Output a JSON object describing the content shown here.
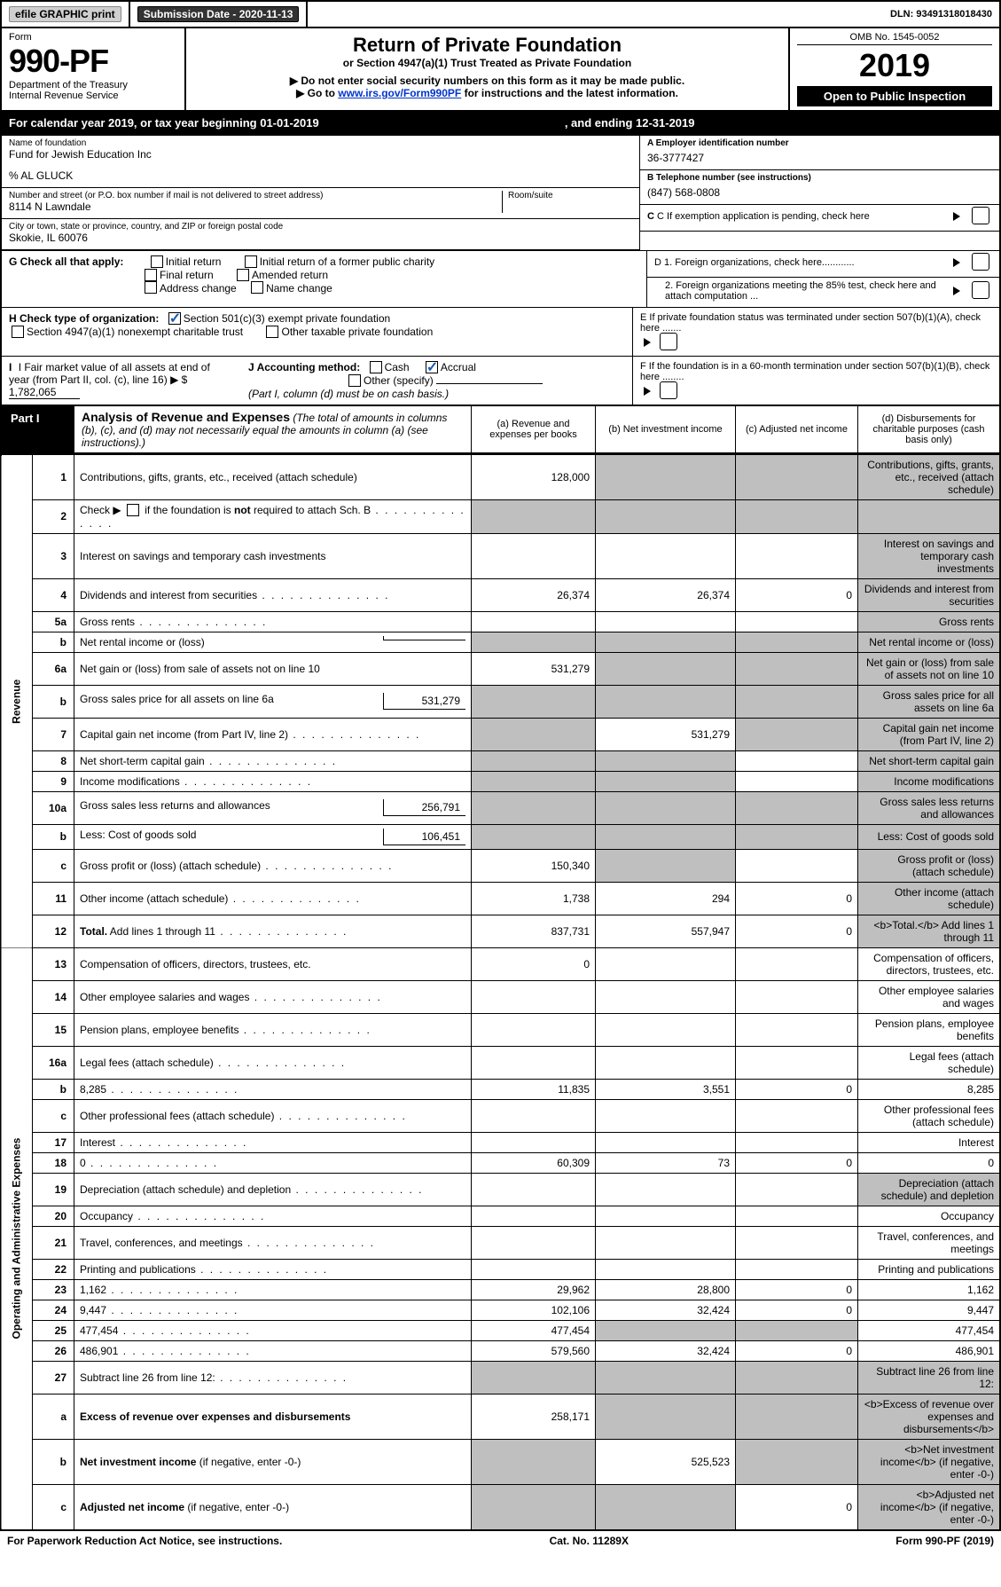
{
  "topbar": {
    "efile": "efile GRAPHIC print",
    "submission_label": "Submission Date - 2020-11-13",
    "dln": "DLN: 93491318018430"
  },
  "head": {
    "form_word": "Form",
    "form_no": "990-PF",
    "dept": "Department of the Treasury",
    "irs": "Internal Revenue Service",
    "title": "Return of Private Foundation",
    "subtitle": "or Section 4947(a)(1) Trust Treated as Private Foundation",
    "note1": "▶ Do not enter social security numbers on this form as it may be made public.",
    "note2_pre": "▶ Go to ",
    "note2_link": "www.irs.gov/Form990PF",
    "note2_post": " for instructions and the latest information.",
    "omb": "OMB No. 1545-0052",
    "year": "2019",
    "open": "Open to Public Inspection"
  },
  "calendar": {
    "left": "For calendar year 2019, or tax year beginning 01-01-2019",
    "right": ", and ending 12-31-2019"
  },
  "id": {
    "name_label": "Name of foundation",
    "name": "Fund for Jewish Education Inc",
    "care_of": "% AL GLUCK",
    "addr_label": "Number and street (or P.O. box number if mail is not delivered to street address)",
    "room_label": "Room/suite",
    "addr": "8114 N Lawndale",
    "city_label": "City or town, state or province, country, and ZIP or foreign postal code",
    "city": "Skokie, IL  60076",
    "A_label": "A Employer identification number",
    "A_val": "36-3777427",
    "B_label": "B Telephone number (see instructions)",
    "B_val": "(847) 568-0808",
    "C_label": "C If exemption application is pending, check here",
    "D1": "D 1. Foreign organizations, check here............",
    "D2": "2. Foreign organizations meeting the 85% test, check here and attach computation ...",
    "E": "E  If private foundation status was terminated under section 507(b)(1)(A), check here .......",
    "F": "F  If the foundation is in a 60-month termination under section 507(b)(1)(B), check here ........"
  },
  "G": {
    "label": "G Check all that apply:",
    "opts": [
      "Initial return",
      "Initial return of a former public charity",
      "Final return",
      "Amended return",
      "Address change",
      "Name change"
    ]
  },
  "H": {
    "label": "H Check type of organization:",
    "o1": "Section 501(c)(3) exempt private foundation",
    "o2": "Section 4947(a)(1) nonexempt charitable trust",
    "o3": "Other taxable private foundation"
  },
  "I": {
    "label": "I Fair market value of all assets at end of year (from Part II, col. (c), line 16)",
    "amount_prefix": "▶ $",
    "amount": "1,782,065"
  },
  "J": {
    "label": "J Accounting method:",
    "cash": "Cash",
    "accrual": "Accrual",
    "other": "Other (specify)",
    "note": "(Part I, column (d) must be on cash basis.)"
  },
  "part1": {
    "tag": "Part I",
    "title": "Analysis of Revenue and Expenses",
    "title_note": "(The total of amounts in columns (b), (c), and (d) may not necessarily equal the amounts in column (a) (see instructions).)",
    "col_a": "(a)   Revenue and expenses per books",
    "col_b": "(b)   Net investment income",
    "col_c": "(c)  Adjusted net income",
    "col_d": "(d)  Disbursements for charitable purposes (cash basis only)"
  },
  "side": {
    "rev": "Revenue",
    "exp": "Operating and Administrative Expenses"
  },
  "rows": {
    "r1": {
      "n": "1",
      "d": "Contributions, gifts, grants, etc., received (attach schedule)",
      "a": "128,000",
      "b_grey": true,
      "c_grey": true,
      "d_grey": true
    },
    "r2": {
      "n": "2",
      "d_pre": "Check ▶ ",
      "d_post": " if the foundation is <b>not</b> required to attach Sch. B",
      "a_grey": true,
      "b_grey": true,
      "c_grey": true,
      "d_grey": true
    },
    "r3": {
      "n": "3",
      "d": "Interest on savings and temporary cash investments",
      "d_grey": true
    },
    "r4": {
      "n": "4",
      "d": "Dividends and interest from securities",
      "a": "26,374",
      "b": "26,374",
      "c": "0",
      "d_grey": true
    },
    "r5a": {
      "n": "5a",
      "d": "Gross rents",
      "d_grey": true
    },
    "r5b": {
      "n": "b",
      "d": "Net rental income or (loss)",
      "boxed": "",
      "a_grey": true,
      "b_grey": true,
      "c_grey": true,
      "d_grey": true
    },
    "r6a": {
      "n": "6a",
      "d": "Net gain or (loss) from sale of assets not on line 10",
      "a": "531,279",
      "b_grey": true,
      "c_grey": true,
      "d_grey": true
    },
    "r6b": {
      "n": "b",
      "d": "Gross sales price for all assets on line 6a",
      "boxed": "531,279",
      "a_grey": true,
      "b_grey": true,
      "c_grey": true,
      "d_grey": true
    },
    "r7": {
      "n": "7",
      "d": "Capital gain net income (from Part IV, line 2)",
      "a_grey": true,
      "b": "531,279",
      "c_grey": true,
      "d_grey": true
    },
    "r8": {
      "n": "8",
      "d": "Net short-term capital gain",
      "a_grey": true,
      "b_grey": true,
      "d_grey": true
    },
    "r9": {
      "n": "9",
      "d": "Income modifications",
      "a_grey": true,
      "b_grey": true,
      "d_grey": true
    },
    "r10a": {
      "n": "10a",
      "d": "Gross sales less returns and allowances",
      "boxed": "256,791",
      "a_grey": true,
      "b_grey": true,
      "c_grey": true,
      "d_grey": true
    },
    "r10b": {
      "n": "b",
      "d": "Less: Cost of goods sold",
      "boxed": "106,451",
      "a_grey": true,
      "b_grey": true,
      "c_grey": true,
      "d_grey": true
    },
    "r10c": {
      "n": "c",
      "d": "Gross profit or (loss) (attach schedule)",
      "a": "150,340",
      "b_grey": true,
      "d_grey": true
    },
    "r11": {
      "n": "11",
      "d": "Other income (attach schedule)",
      "a": "1,738",
      "b": "294",
      "c": "0",
      "d_grey": true
    },
    "r12": {
      "n": "12",
      "d": "<b>Total.</b> Add lines 1 through 11",
      "a": "837,731",
      "b": "557,947",
      "c": "0",
      "d_grey": true
    },
    "r13": {
      "n": "13",
      "d": "Compensation of officers, directors, trustees, etc.",
      "a": "0"
    },
    "r14": {
      "n": "14",
      "d": "Other employee salaries and wages"
    },
    "r15": {
      "n": "15",
      "d": "Pension plans, employee benefits"
    },
    "r16a": {
      "n": "16a",
      "d": "Legal fees (attach schedule)"
    },
    "r16b": {
      "n": "b",
      "d": "8,285",
      "a": "11,835",
      "b": "3,551",
      "c": "0"
    },
    "r16c": {
      "n": "c",
      "d": "Other professional fees (attach schedule)"
    },
    "r17": {
      "n": "17",
      "d": "Interest"
    },
    "r18": {
      "n": "18",
      "d": "0",
      "a": "60,309",
      "b": "73",
      "c": "0"
    },
    "r19": {
      "n": "19",
      "d": "Depreciation (attach schedule) and depletion",
      "d_grey": true
    },
    "r20": {
      "n": "20",
      "d": "Occupancy"
    },
    "r21": {
      "n": "21",
      "d": "Travel, conferences, and meetings"
    },
    "r22": {
      "n": "22",
      "d": "Printing and publications"
    },
    "r23": {
      "n": "23",
      "d": "1,162",
      "a": "29,962",
      "b": "28,800",
      "c": "0"
    },
    "r24": {
      "n": "24",
      "d": "9,447",
      "a": "102,106",
      "b": "32,424",
      "c": "0"
    },
    "r25": {
      "n": "25",
      "d": "477,454",
      "a": "477,454",
      "b_grey": true,
      "c_grey": true
    },
    "r26": {
      "n": "26",
      "d": "486,901",
      "a": "579,560",
      "b": "32,424",
      "c": "0"
    },
    "r27": {
      "n": "27",
      "d": "Subtract line 26 from line 12:",
      "a_grey": true,
      "b_grey": true,
      "c_grey": true,
      "d_grey": true
    },
    "r27a": {
      "n": "a",
      "d": "<b>Excess of revenue over expenses and disbursements</b>",
      "a": "258,171",
      "b_grey": true,
      "c_grey": true,
      "d_grey": true
    },
    "r27b": {
      "n": "b",
      "d": "<b>Net investment income</b> (if negative, enter -0-)",
      "a_grey": true,
      "b": "525,523",
      "c_grey": true,
      "d_grey": true
    },
    "r27c": {
      "n": "c",
      "d": "<b>Adjusted net income</b> (if negative, enter -0-)",
      "a_grey": true,
      "b_grey": true,
      "c": "0",
      "d_grey": true
    }
  },
  "footer": {
    "left": "For Paperwork Reduction Act Notice, see instructions.",
    "mid": "Cat. No. 11289X",
    "right": "Form 990-PF (2019)"
  }
}
